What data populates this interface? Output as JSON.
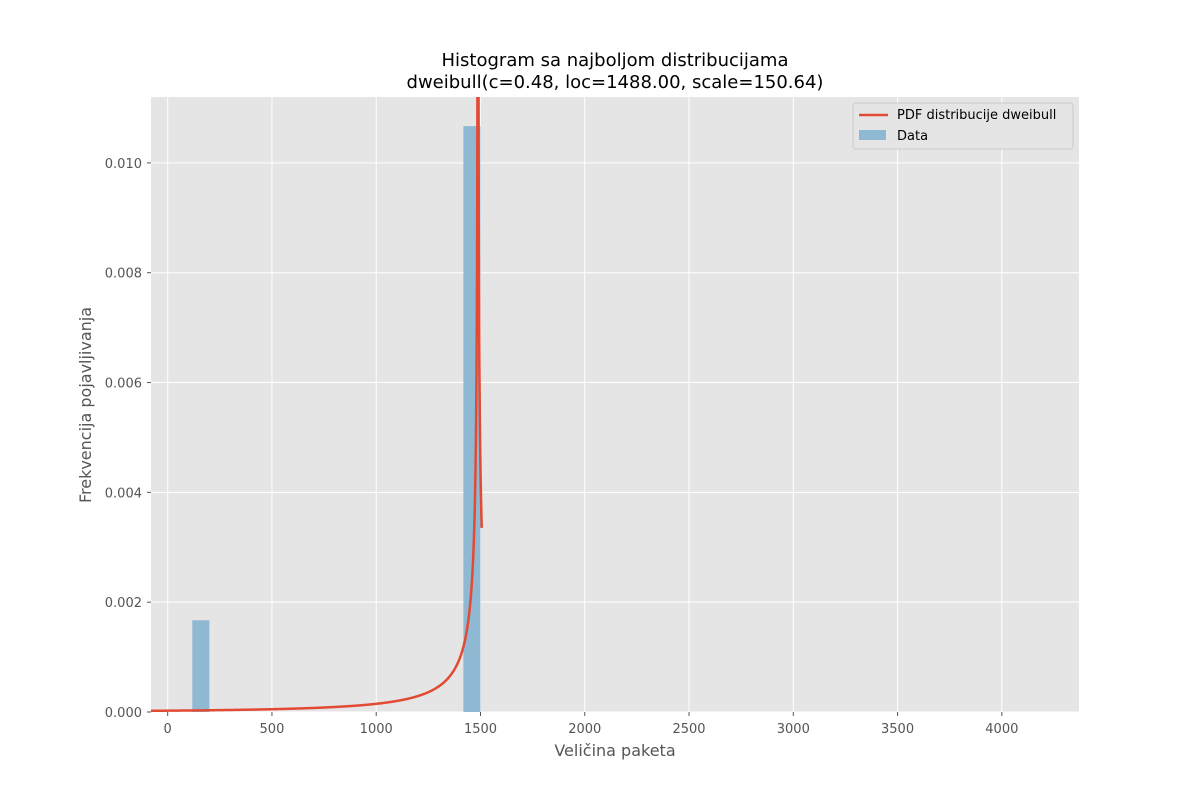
{
  "chart_data": {
    "type": "bar",
    "title": "Histogram sa najboljom distribucijama",
    "subtitle": "dweibull(c=0.48, loc=1488.00, scale=150.64)",
    "xlabel": "Veličina paketa",
    "ylabel": "Frekvencija pojavljivanja",
    "xlim": [
      -80,
      4370
    ],
    "ylim": [
      0,
      0.0112
    ],
    "xticks": [
      0,
      500,
      1000,
      1500,
      2000,
      2500,
      3000,
      3500,
      4000
    ],
    "xtick_labels": [
      "0",
      "500",
      "1000",
      "1500",
      "2000",
      "2500",
      "3000",
      "3500",
      "4000"
    ],
    "yticks": [
      0,
      0.002,
      0.004,
      0.006,
      0.008,
      0.01
    ],
    "ytick_labels": [
      "0.000",
      "0.002",
      "0.004",
      "0.006",
      "0.008",
      "0.010"
    ],
    "grid": true,
    "legend_position": "top-right",
    "legend": [
      {
        "label": "PDF distribucije dweibull",
        "kind": "line",
        "color": "#e24a33"
      },
      {
        "label": "Data",
        "kind": "patch",
        "color": "#8fb9d3"
      }
    ],
    "bins": [
      {
        "x0": 118,
        "x1": 200,
        "value": 0.00167
      },
      {
        "x0": 1418,
        "x1": 1500,
        "value": 0.01067
      }
    ],
    "pdf": {
      "name": "PDF distribucije dweibull",
      "distribution": "dweibull",
      "c": 0.48,
      "loc": 1488.0,
      "scale": 150.64,
      "x_range": [
        -80,
        1506
      ]
    },
    "colors": {
      "bars": "#8fb9d3",
      "pdf_line": "#e24a33",
      "axes_background": "#e5e5e5",
      "grid": "#ffffff",
      "tick_text": "#555555"
    }
  }
}
